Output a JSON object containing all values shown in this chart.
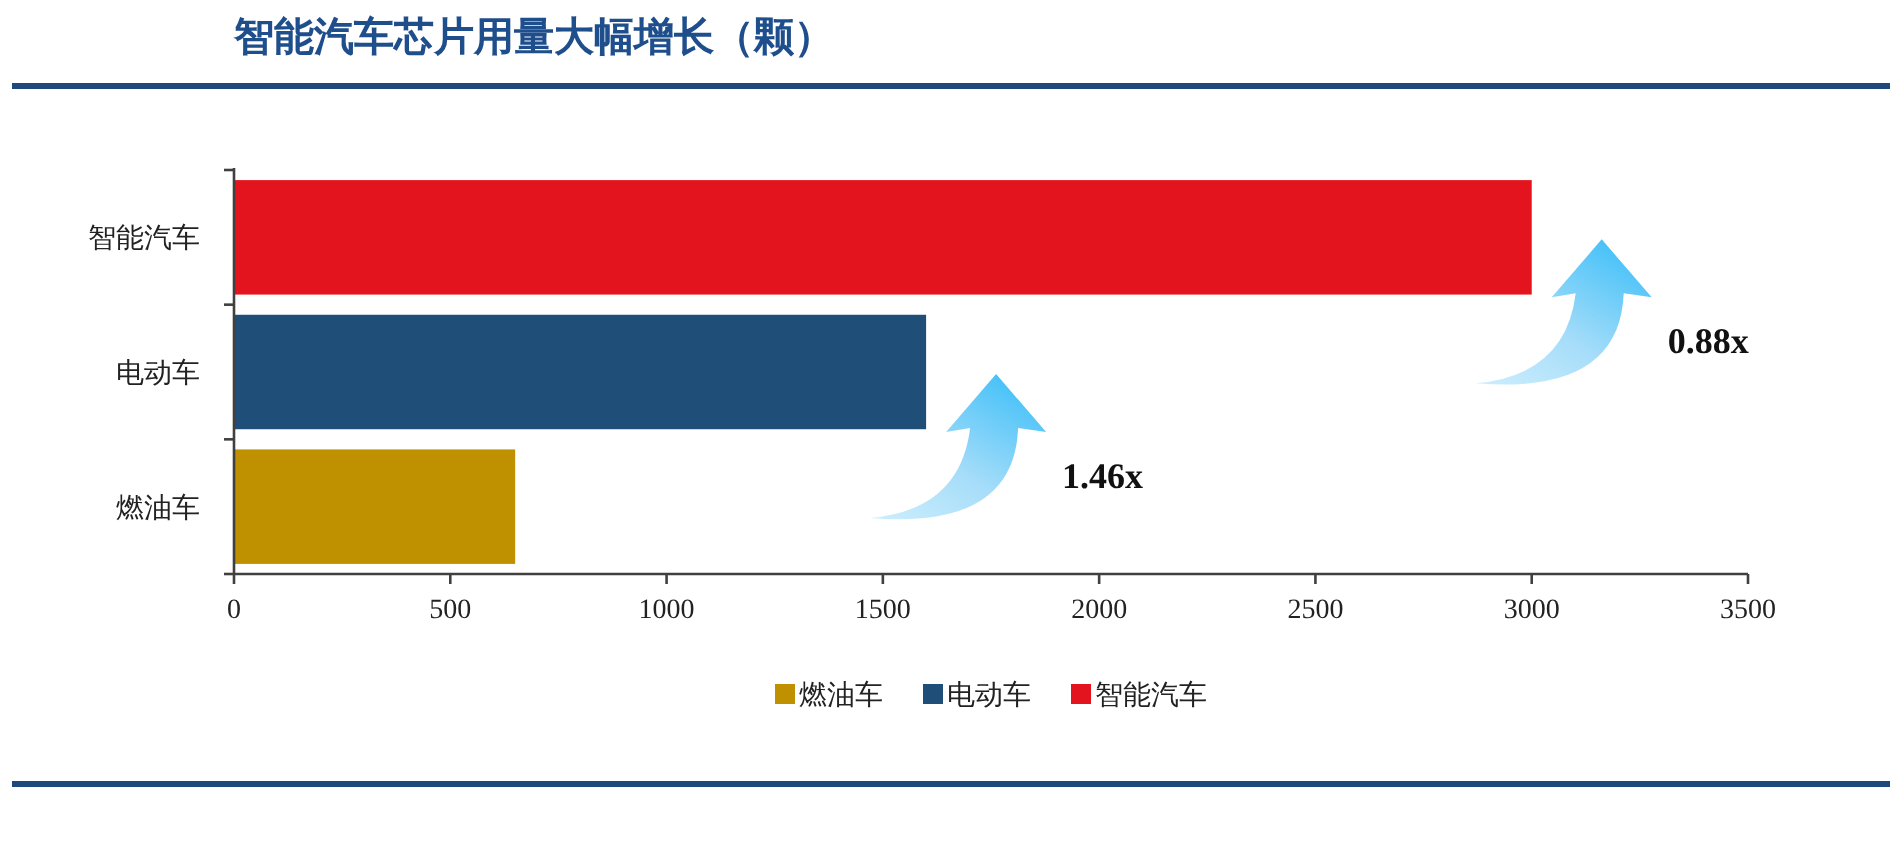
{
  "chart_data": {
    "type": "bar",
    "orientation": "horizontal",
    "stacked": true,
    "title": "智能汽车芯片用量大幅增长（颗）",
    "categories": [
      "智能汽车",
      "电动车",
      "燃油车"
    ],
    "series": [
      {
        "name": "燃油车",
        "color": "#bf9000",
        "values": [
          null,
          null,
          650
        ]
      },
      {
        "name": "电动车",
        "color": "#1f4e79",
        "values": [
          null,
          1600,
          null
        ]
      },
      {
        "name": "智能汽车",
        "color": "#e3141e",
        "values": [
          3000,
          null,
          null
        ]
      }
    ],
    "xlim": [
      0,
      3500
    ],
    "xticks": [
      0,
      500,
      1000,
      1500,
      2000,
      2500,
      3000,
      3500
    ],
    "legend": "bottom",
    "annotations": [
      "0.88x",
      "1.46x"
    ]
  }
}
